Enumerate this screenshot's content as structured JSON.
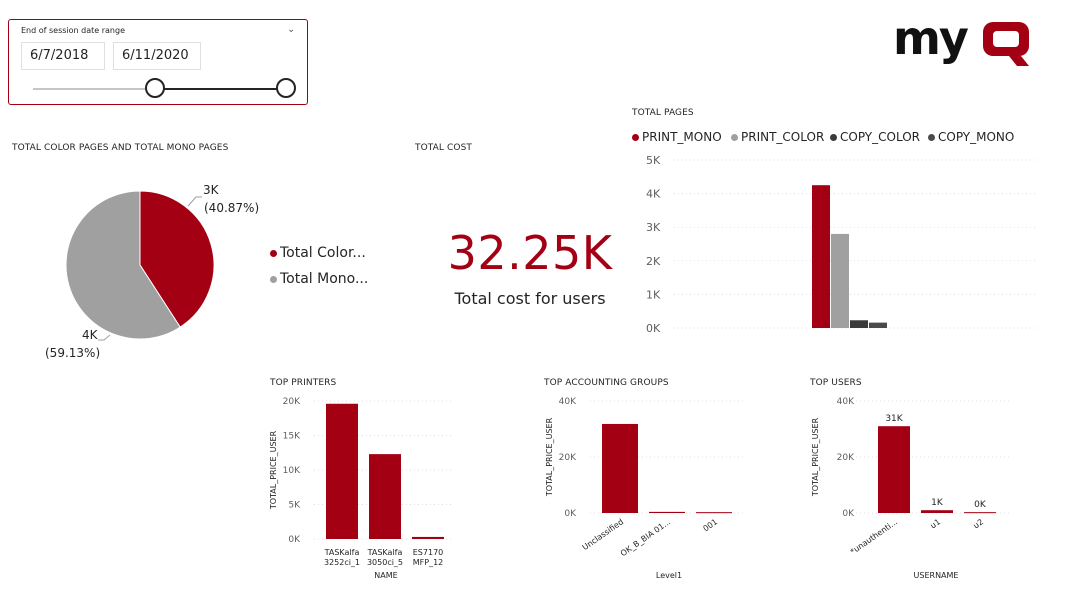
{
  "slicer": {
    "title": "End of session date range",
    "start_date": "6/7/2018",
    "end_date": "6/11/2020",
    "range_fraction": [
      0.48,
      1.0
    ]
  },
  "logo": {
    "text": "myQ",
    "color": "#a30014"
  },
  "colors": {
    "accent": "#a30014",
    "gray": "#a0a0a0",
    "dark": "#3a3a3a",
    "darker": "#4a4a4a"
  },
  "pie_panel": {
    "title": "TOTAL COLOR PAGES AND TOTAL MONO PAGES",
    "legend": [
      "Total Color...",
      "Total Mono..."
    ],
    "slices": [
      {
        "label_value": "3K",
        "label_pct": "(40.87%)",
        "pct": 40.87,
        "color": "#a30014"
      },
      {
        "label_value": "4K",
        "label_pct": "(59.13%)",
        "pct": 59.13,
        "color": "#a0a0a0"
      }
    ]
  },
  "cost_panel": {
    "title": "TOTAL COST",
    "value": "32.25K",
    "label": "Total cost for users"
  },
  "chart_data": [
    {
      "type": "bar",
      "title": "TOTAL PAGES",
      "categories": [
        ""
      ],
      "series": [
        {
          "name": "PRINT_MONO",
          "values": [
            4250
          ],
          "color": "#a30014"
        },
        {
          "name": "PRINT_COLOR",
          "values": [
            2800
          ],
          "color": "#a0a0a0"
        },
        {
          "name": "COPY_COLOR",
          "values": [
            230
          ],
          "color": "#3a3a3a"
        },
        {
          "name": "COPY_MONO",
          "values": [
            160
          ],
          "color": "#4a4a4a"
        }
      ],
      "ylim": [
        0,
        5000
      ],
      "yticks": [
        "0K",
        "1K",
        "2K",
        "3K",
        "4K",
        "5K"
      ],
      "grid": true,
      "legend": "top"
    },
    {
      "type": "bar",
      "title": "TOP PRINTERS",
      "categories": [
        [
          "TASKalfa",
          "3252ci_1"
        ],
        [
          "TASKalfa",
          "3050ci_5"
        ],
        [
          "ES7170",
          "MFP_12"
        ]
      ],
      "values": [
        19600,
        12300,
        300
      ],
      "ylabel": "TOTAL_PRICE_USER",
      "xlabel": "NAME",
      "ylim": [
        0,
        20000
      ],
      "yticks": [
        "0K",
        "5K",
        "10K",
        "15K",
        "20K"
      ],
      "grid": true
    },
    {
      "type": "bar",
      "title": "TOP ACCOUNTING GROUPS",
      "categories": [
        "Unclassified",
        "OK_B_BIA 01...",
        "001"
      ],
      "values": [
        31800,
        400,
        300
      ],
      "ylabel": "TOTAL_PRICE_USER",
      "xlabel": "Level1",
      "ylim": [
        0,
        40000
      ],
      "yticks": [
        "0K",
        "20K",
        "40K"
      ],
      "grid": true
    },
    {
      "type": "bar",
      "title": "TOP USERS",
      "categories": [
        "*unauthenti...",
        "u1",
        "u2"
      ],
      "values": [
        31000,
        1000,
        300
      ],
      "data_labels": [
        "31K",
        "1K",
        "0K"
      ],
      "ylabel": "TOTAL_PRICE_USER",
      "xlabel": "USERNAME",
      "ylim": [
        0,
        40000
      ],
      "yticks": [
        "0K",
        "20K",
        "40K"
      ],
      "grid": true
    }
  ]
}
